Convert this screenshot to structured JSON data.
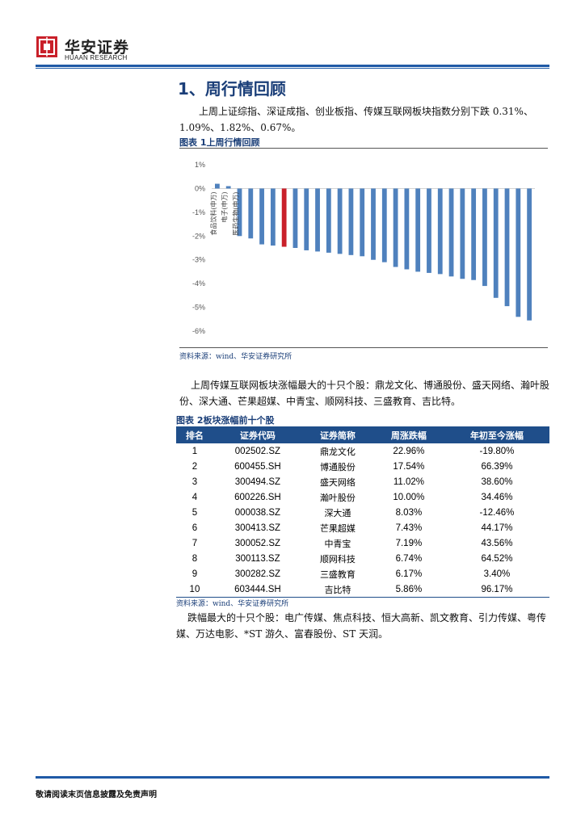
{
  "header": {
    "logo_cn": "华安证券",
    "logo_en": "HUAAN RESEARCH",
    "brand_color": "#c9202a",
    "accent_color": "#1f5aa6"
  },
  "section": {
    "title": "1、周行情回顾",
    "para1": "上周上证综指、深证成指、创业板指、传媒互联网板块指数分别下跌 0.31%、1.09%、1.82%、0.67%。"
  },
  "figure1": {
    "caption": "图表 1上周行情回顾",
    "source": "资料来源：wind、华安证券研究所"
  },
  "chart_data": {
    "type": "bar",
    "ylim": [
      -6,
      1
    ],
    "y_ticks": [
      "1%",
      "0%",
      "-1%",
      "-2%",
      "-3%",
      "-4%",
      "-5%",
      "-6%"
    ],
    "categories": [
      "食品饮料(申万)",
      "电子(申万)",
      "医药生物(申万)",
      "",
      "",
      "",
      "",
      "",
      "",
      "",
      "",
      "",
      "",
      "",
      "",
      "",
      "",
      "",
      "",
      "",
      "",
      "",
      "",
      "",
      "",
      "",
      "",
      "",
      ""
    ],
    "values": [
      0.2,
      0.1,
      -2.0,
      -2.1,
      -2.35,
      -2.4,
      -2.45,
      -2.5,
      -2.6,
      -2.65,
      -2.7,
      -2.75,
      -2.8,
      -2.85,
      -3.0,
      -3.1,
      -3.3,
      -3.4,
      -3.5,
      -3.55,
      -3.6,
      -3.7,
      -3.8,
      -3.85,
      -4.1,
      -4.6,
      -4.95,
      -5.4,
      -5.55
    ],
    "highlight_index": 6,
    "bar_color": "#4f81bd",
    "highlight_color": "#c9202a",
    "grid": false
  },
  "para2": "上周传媒互联网板块涨幅最大的十只个股：鼎龙文化、博通股份、盛天网络、瀚叶股份、深大通、芒果超媒、中青宝、顺网科技、三盛教育、吉比特。",
  "table": {
    "caption": "图表 2板块涨幅前十个股",
    "headers": [
      "排名",
      "证券代码",
      "证券简称",
      "周涨跌幅",
      "年初至今涨幅"
    ],
    "rows": [
      [
        "1",
        "002502.SZ",
        "鼎龙文化",
        "22.96%",
        "-19.80%"
      ],
      [
        "2",
        "600455.SH",
        "博通股份",
        "17.54%",
        "66.39%"
      ],
      [
        "3",
        "300494.SZ",
        "盛天网络",
        "11.02%",
        "38.60%"
      ],
      [
        "4",
        "600226.SH",
        "瀚叶股份",
        "10.00%",
        "34.46%"
      ],
      [
        "5",
        "000038.SZ",
        "深大通",
        "8.03%",
        "-12.46%"
      ],
      [
        "6",
        "300413.SZ",
        "芒果超媒",
        "7.43%",
        "44.17%"
      ],
      [
        "7",
        "300052.SZ",
        "中青宝",
        "7.19%",
        "43.56%"
      ],
      [
        "8",
        "300113.SZ",
        "顺网科技",
        "6.74%",
        "64.52%"
      ],
      [
        "9",
        "300282.SZ",
        "三盛教育",
        "6.17%",
        "3.40%"
      ],
      [
        "10",
        "603444.SH",
        "吉比特",
        "5.86%",
        "96.17%"
      ]
    ],
    "source": "资料来源：wind、华安证券研究所"
  },
  "para3": "跌幅最大的十只个股：电广传媒、焦点科技、恒大高新、凯文教育、引力传媒、粤传媒、万达电影、*ST 游久、富春股份、ST 天润。",
  "footer": "敬请阅读末页信息披露及免责声明"
}
